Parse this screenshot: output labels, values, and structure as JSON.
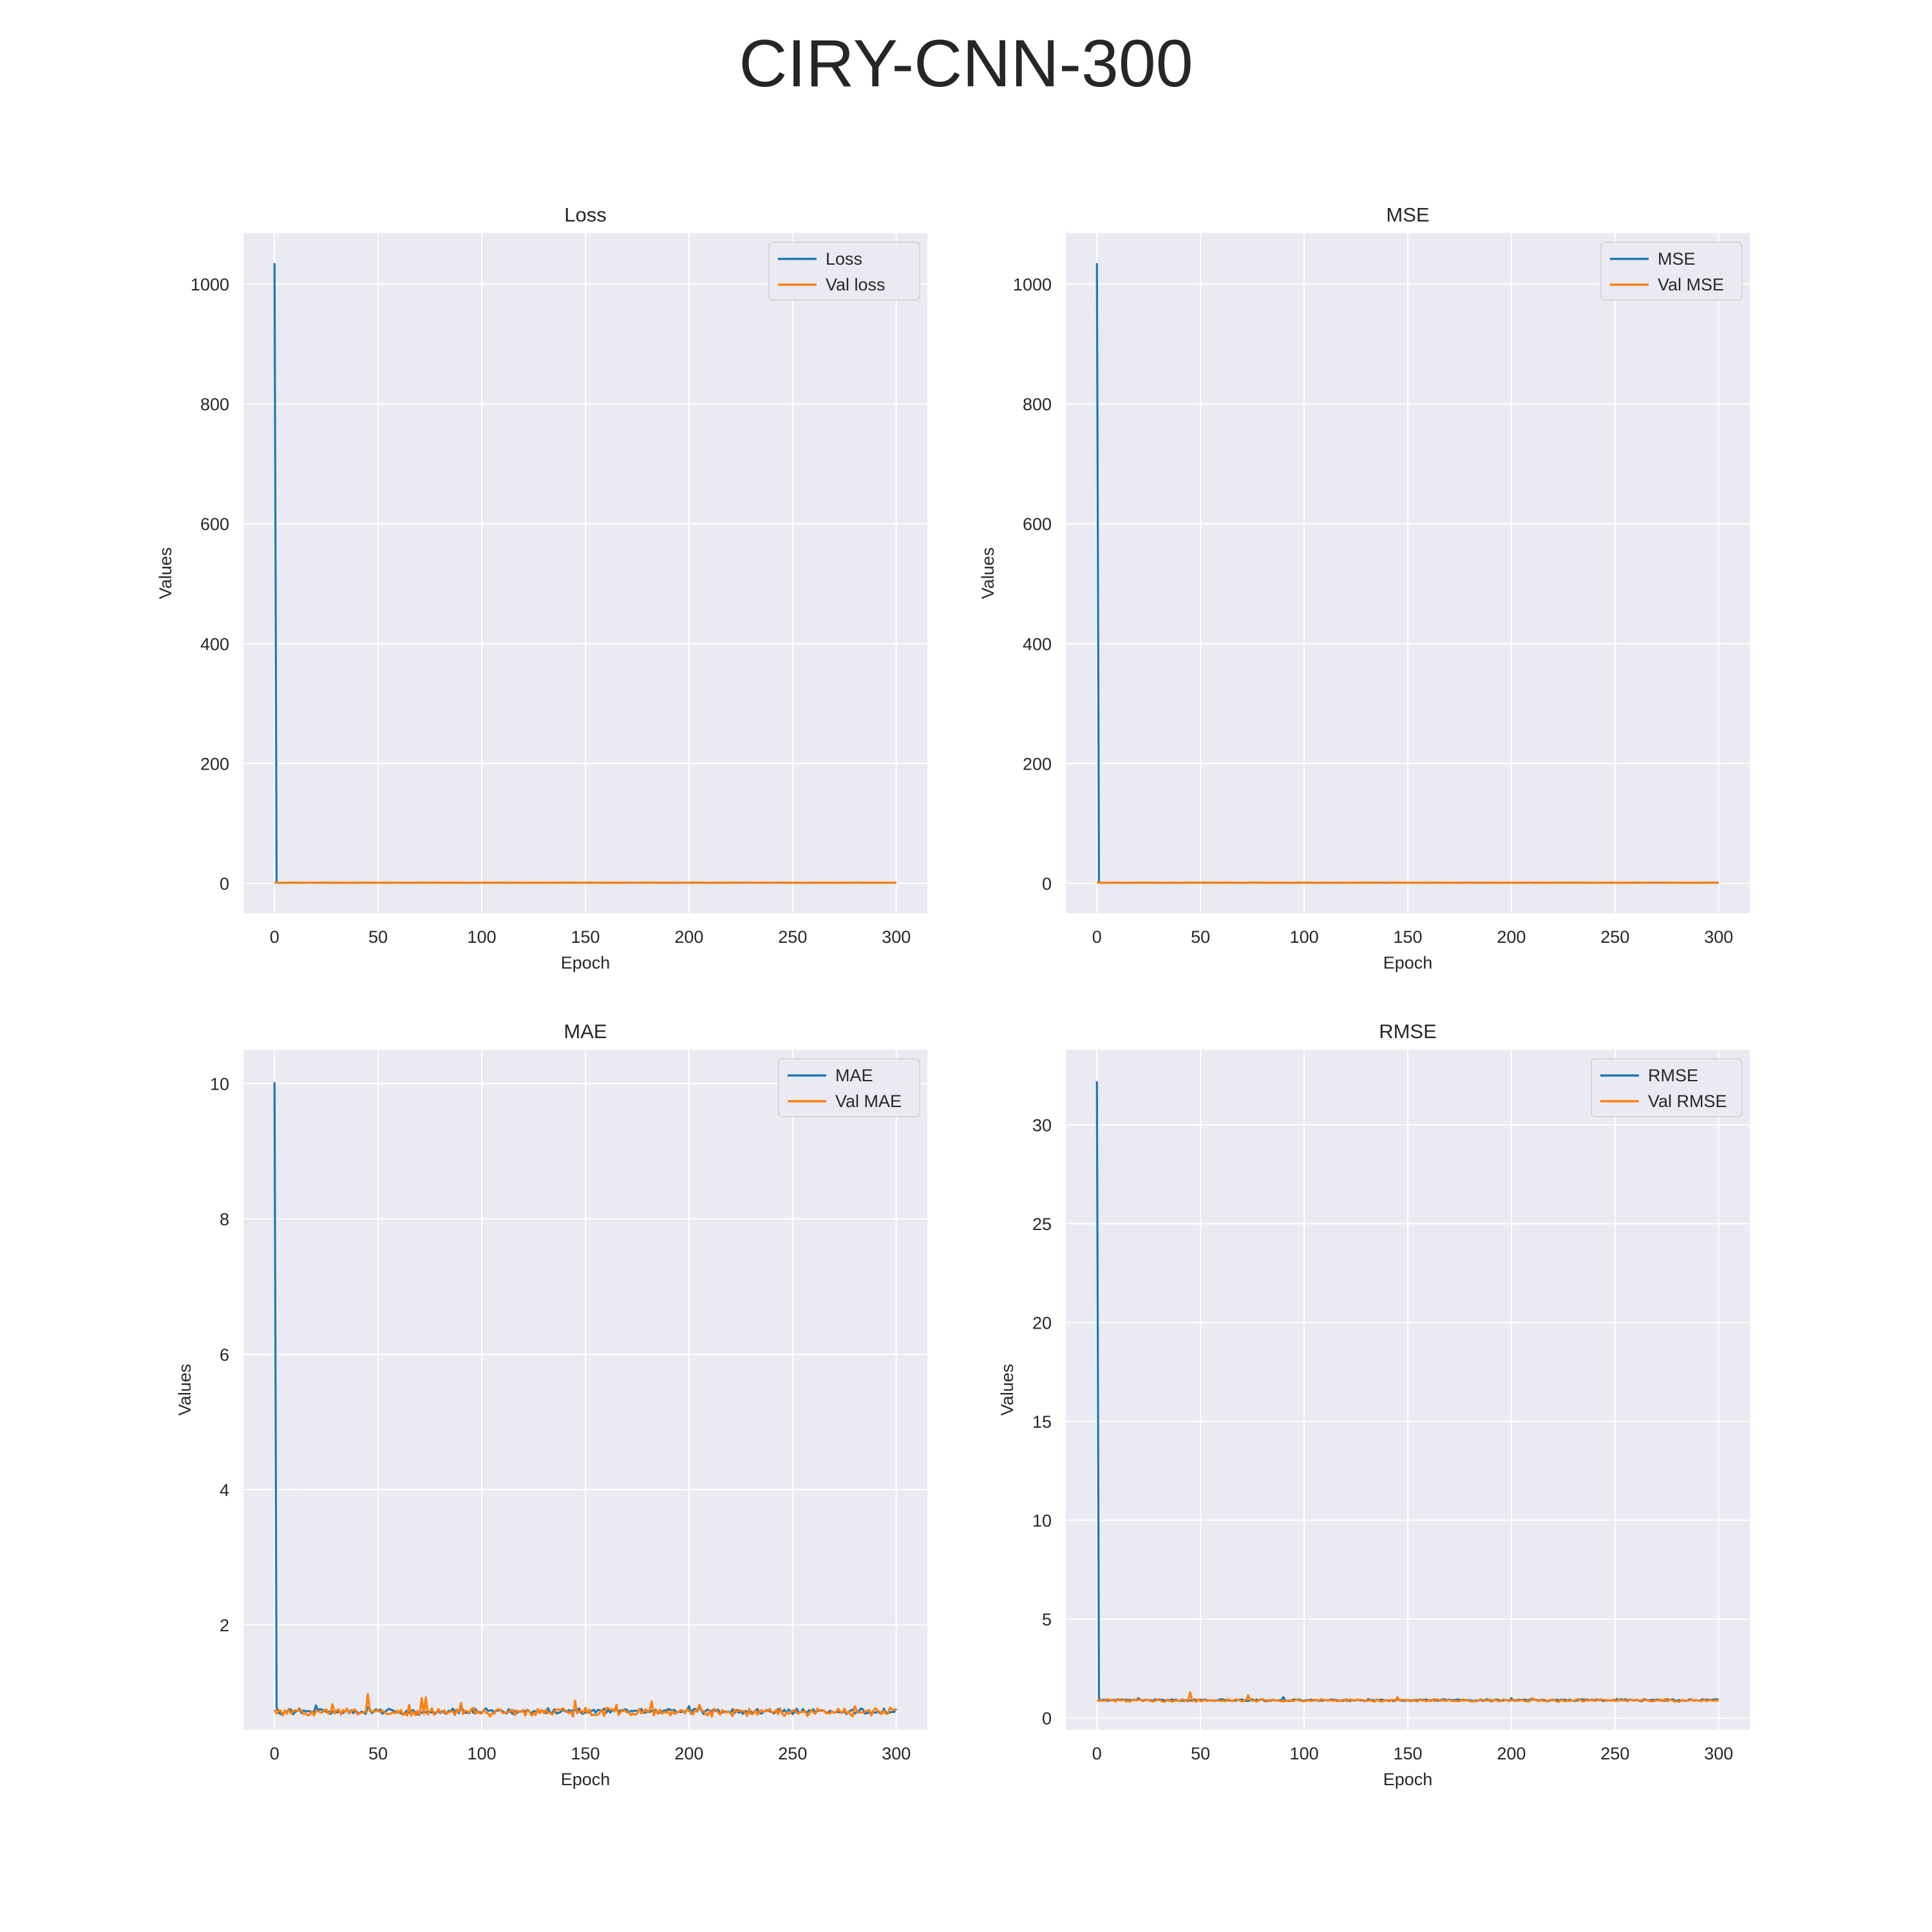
{
  "title": "CIRY-CNN-300",
  "colors": {
    "train": "#1f77b4",
    "val": "#ff7f0e",
    "bg": "#eaeaf2",
    "grid": "#ffffff"
  },
  "chart_data": [
    {
      "type": "line",
      "title": "Loss",
      "xlabel": "Epoch",
      "ylabel": "Values",
      "xlim": [
        -15,
        315
      ],
      "ylim": [
        -50,
        1085
      ],
      "xticks": [
        0,
        50,
        100,
        150,
        200,
        250,
        300
      ],
      "yticks": [
        0,
        200,
        400,
        600,
        800,
        1000
      ],
      "legend": "top-right",
      "grid": true,
      "series": [
        {
          "name": "Loss",
          "role": "train",
          "start": [
            [
              0,
              1035
            ],
            [
              1,
              1.5
            ]
          ],
          "base": 0.9,
          "amp": 0.15,
          "seed": 11,
          "spikes": []
        },
        {
          "name": "Val loss",
          "role": "val",
          "start": [
            [
              0,
              1.2
            ]
          ],
          "base": 0.9,
          "amp": 0.2,
          "seed": 12,
          "spikes": []
        }
      ]
    },
    {
      "type": "line",
      "title": "MSE",
      "xlabel": "Epoch",
      "ylabel": "Values",
      "xlim": [
        -15,
        315
      ],
      "ylim": [
        -50,
        1085
      ],
      "xticks": [
        0,
        50,
        100,
        150,
        200,
        250,
        300
      ],
      "yticks": [
        0,
        200,
        400,
        600,
        800,
        1000
      ],
      "legend": "top-right",
      "grid": true,
      "series": [
        {
          "name": "MSE",
          "role": "train",
          "start": [
            [
              0,
              1035
            ],
            [
              1,
              1.5
            ]
          ],
          "base": 0.9,
          "amp": 0.15,
          "seed": 21,
          "spikes": []
        },
        {
          "name": "Val MSE",
          "role": "val",
          "start": [
            [
              0,
              1.2
            ]
          ],
          "base": 0.9,
          "amp": 0.2,
          "seed": 22,
          "spikes": []
        }
      ]
    },
    {
      "type": "line",
      "title": "MAE",
      "xlabel": "Epoch",
      "ylabel": "Values",
      "xlim": [
        -15,
        315
      ],
      "ylim": [
        0.45,
        10.5
      ],
      "xticks": [
        0,
        50,
        100,
        150,
        200,
        250,
        300
      ],
      "yticks": [
        2,
        4,
        6,
        8,
        10
      ],
      "legend": "top-right",
      "grid": true,
      "series": [
        {
          "name": "MAE",
          "role": "train",
          "start": [
            [
              0,
              10.02
            ],
            [
              1,
              0.78
            ]
          ],
          "base": 0.72,
          "amp": 0.05,
          "seed": 31,
          "spikes": [
            [
              20,
              0.81
            ],
            [
              45,
              0.78
            ],
            [
              90,
              0.79
            ],
            [
              132,
              0.77
            ],
            [
              200,
              0.8
            ],
            [
              205,
              0.79
            ]
          ]
        },
        {
          "name": "Val MAE",
          "role": "val",
          "start": [
            [
              0,
              0.75
            ]
          ],
          "base": 0.71,
          "amp": 0.07,
          "seed": 32,
          "spikes": [
            [
              28,
              0.83
            ],
            [
              45,
              0.98
            ],
            [
              65,
              0.82
            ],
            [
              71,
              0.92
            ],
            [
              73,
              0.93
            ],
            [
              90,
              0.85
            ],
            [
              145,
              0.88
            ],
            [
              165,
              0.82
            ],
            [
              182,
              0.87
            ],
            [
              205,
              0.82
            ],
            [
              280,
              0.8
            ],
            [
              297,
              0.78
            ]
          ]
        }
      ]
    },
    {
      "type": "line",
      "title": "RMSE",
      "xlabel": "Epoch",
      "ylabel": "Values",
      "xlim": [
        -15,
        315
      ],
      "ylim": [
        -0.6,
        33.8
      ],
      "xticks": [
        0,
        50,
        100,
        150,
        200,
        250,
        300
      ],
      "yticks": [
        0,
        5,
        10,
        15,
        20,
        25,
        30
      ],
      "legend": "top-right",
      "grid": true,
      "series": [
        {
          "name": "RMSE",
          "role": "train",
          "start": [
            [
              0,
              32.2
            ],
            [
              1,
              1.0
            ]
          ],
          "base": 0.9,
          "amp": 0.06,
          "seed": 41,
          "spikes": [
            [
              20,
              1.0
            ],
            [
              90,
              1.05
            ],
            [
              200,
              1.0
            ]
          ]
        },
        {
          "name": "Val RMSE",
          "role": "val",
          "start": [
            [
              0,
              0.9
            ]
          ],
          "base": 0.88,
          "amp": 0.08,
          "seed": 42,
          "spikes": [
            [
              45,
              1.3
            ],
            [
              73,
              1.15
            ],
            [
              145,
              1.05
            ],
            [
              210,
              1.0
            ]
          ]
        }
      ]
    }
  ]
}
